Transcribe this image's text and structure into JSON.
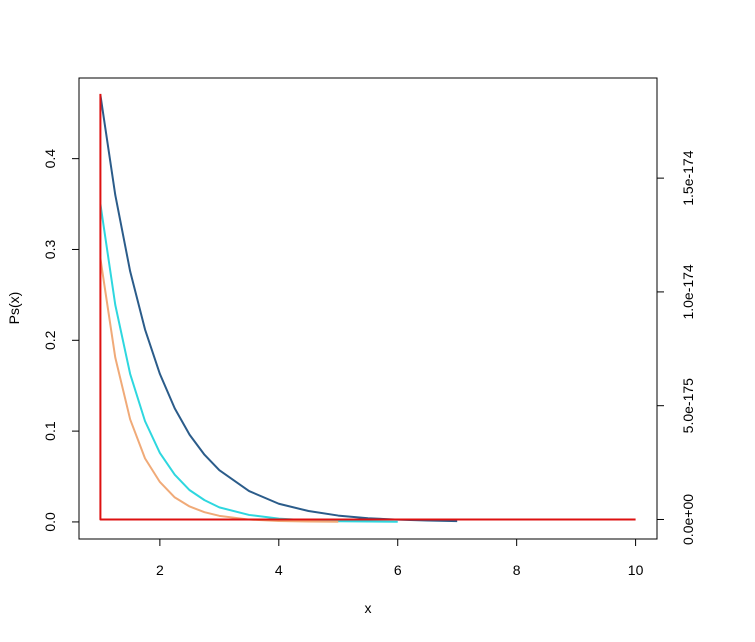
{
  "chart_data": {
    "type": "line",
    "title": "",
    "xlabel": "x",
    "ylabel": "Ps(x)",
    "xlim": [
      0.64,
      10.36
    ],
    "ylim": [
      -0.0188,
      0.4888
    ],
    "y2lim": [
      -8.58e-176,
      1.94e-174
    ],
    "x_ticks": [
      "2",
      "4",
      "6",
      "8",
      "10"
    ],
    "y_ticks": [
      "0.0",
      "0.1",
      "0.2",
      "0.3",
      "0.4"
    ],
    "y2_ticks": [
      "0.0e+00",
      "5.0e-175",
      "1.0e-174",
      "1.5e-174"
    ],
    "grid": false,
    "legend": "none",
    "series": [
      {
        "color": "#2b5c8a",
        "axis": "left",
        "points": [
          [
            1.0,
            0.47
          ],
          [
            1.25,
            0.36
          ],
          [
            1.5,
            0.276
          ],
          [
            1.75,
            0.212
          ],
          [
            2.0,
            0.163
          ],
          [
            2.25,
            0.125
          ],
          [
            2.5,
            0.096
          ],
          [
            2.75,
            0.074
          ],
          [
            3.0,
            0.057
          ],
          [
            3.5,
            0.034
          ],
          [
            4.0,
            0.02
          ],
          [
            4.5,
            0.012
          ],
          [
            5.0,
            0.007
          ],
          [
            5.5,
            0.004
          ],
          [
            6.0,
            0.0025
          ],
          [
            6.5,
            0.0015
          ],
          [
            7.0,
            0.0009
          ]
        ]
      },
      {
        "color": "#2ed7df",
        "axis": "left",
        "points": [
          [
            1.0,
            0.35
          ],
          [
            1.25,
            0.239
          ],
          [
            1.5,
            0.163
          ],
          [
            1.75,
            0.111
          ],
          [
            2.0,
            0.076
          ],
          [
            2.25,
            0.052
          ],
          [
            2.5,
            0.035
          ],
          [
            2.75,
            0.024
          ],
          [
            3.0,
            0.016
          ],
          [
            3.5,
            0.0077
          ],
          [
            4.0,
            0.0036
          ],
          [
            4.5,
            0.0017
          ],
          [
            5.0,
            0.0008
          ],
          [
            5.5,
            0.0004
          ],
          [
            6.0,
            0.0002
          ]
        ]
      },
      {
        "color": "#f0aa78",
        "axis": "left",
        "points": [
          [
            1.0,
            0.29
          ],
          [
            1.25,
            0.181
          ],
          [
            1.5,
            0.113
          ],
          [
            1.75,
            0.07
          ],
          [
            2.0,
            0.044
          ],
          [
            2.25,
            0.027
          ],
          [
            2.5,
            0.017
          ],
          [
            2.75,
            0.0107
          ],
          [
            3.0,
            0.0067
          ],
          [
            3.5,
            0.0026
          ],
          [
            4.0,
            0.001
          ],
          [
            4.5,
            0.0004
          ],
          [
            5.0,
            0.0002
          ]
        ]
      },
      {
        "color": "#dd1111",
        "axis": "right",
        "points": [
          [
            1.0,
            1.87e-174
          ],
          [
            1.0,
            0.0
          ],
          [
            10.0,
            0.0
          ]
        ]
      }
    ]
  }
}
